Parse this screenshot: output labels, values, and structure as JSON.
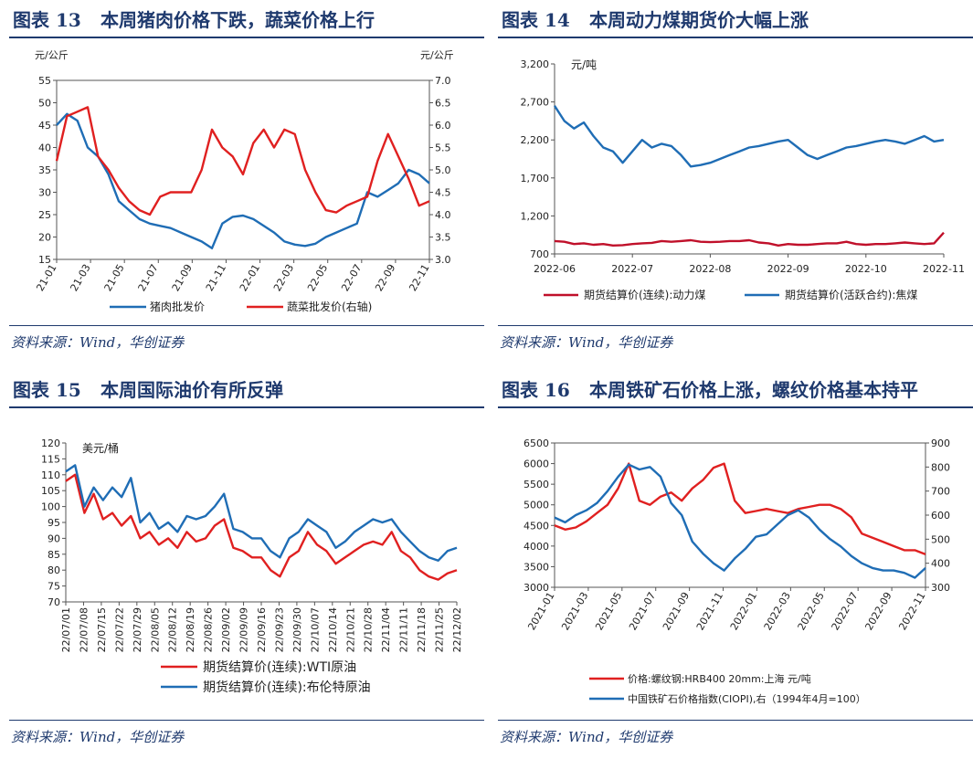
{
  "panels": {
    "p13": {
      "label": "图表 13",
      "title": "本周猪肉价格下跌，蔬菜价格上行",
      "source": "资料来源：Wind，华创证券"
    },
    "p14": {
      "label": "图表 14",
      "title": "本周动力煤期货价大幅上涨",
      "source": "资料来源：Wind，华创证券"
    },
    "p15": {
      "label": "图表 15",
      "title": "本周国际油价有所反弹",
      "source": "资料来源：Wind，华创证券"
    },
    "p16": {
      "label": "图表 16",
      "title": "本周铁矿石价格上涨，螺纹价格基本持平",
      "source": "资料来源：Wind，华创证券"
    }
  },
  "colors": {
    "red": "#e02020",
    "blue": "#1f6db5",
    "navy": "#1f3a6e"
  },
  "chart_data": [
    {
      "id": "c13",
      "type": "line",
      "yunit_left": "元/公斤",
      "yunit_right": "元/公斤",
      "ylim": [
        15,
        55
      ],
      "ylim_right": [
        3.0,
        7.0
      ],
      "yticks": [
        "15",
        "20",
        "25",
        "30",
        "35",
        "40",
        "45",
        "50",
        "55"
      ],
      "yticks_right": [
        "3.0",
        "3.5",
        "4.0",
        "4.5",
        "5.0",
        "5.5",
        "6.0",
        "6.5",
        "7.0"
      ],
      "xticks": [
        "21-01",
        "21-03",
        "21-05",
        "21-07",
        "21-09",
        "21-11",
        "22-01",
        "22-03",
        "22-05",
        "22-07",
        "22-09",
        "22-11"
      ],
      "series": [
        {
          "name": "猪肉批发价",
          "axis": "left",
          "color": "#1f6db5",
          "values": [
            45,
            47.5,
            46,
            40,
            38,
            34,
            28,
            26,
            24,
            23,
            22.5,
            22,
            21,
            20,
            19,
            17.5,
            23,
            24.5,
            24.8,
            24,
            22.5,
            21,
            19,
            18.3,
            18,
            18.5,
            20,
            21,
            22,
            23,
            30,
            29,
            30.5,
            32,
            35,
            34,
            32
          ]
        },
        {
          "name": "蔬菜批发价(右轴)",
          "axis": "right",
          "color": "#e02020",
          "values": [
            5.2,
            6.2,
            6.3,
            6.4,
            5.3,
            5.0,
            4.6,
            4.3,
            4.1,
            4.0,
            4.4,
            4.5,
            4.5,
            4.5,
            5.0,
            5.9,
            5.5,
            5.3,
            4.9,
            5.6,
            5.9,
            5.5,
            5.9,
            5.8,
            5.0,
            4.5,
            4.1,
            4.05,
            4.2,
            4.3,
            4.4,
            5.2,
            5.8,
            5.3,
            4.8,
            4.2,
            4.3
          ]
        }
      ]
    },
    {
      "id": "c14",
      "type": "line",
      "yunit": "元/吨",
      "ylim": [
        700,
        3200
      ],
      "yticks": [
        "700",
        "1,200",
        "1,700",
        "2,200",
        "2,700",
        "3,200"
      ],
      "xticks": [
        "2022-06",
        "2022-07",
        "2022-08",
        "2022-09",
        "2022-10",
        "2022-11"
      ],
      "series": [
        {
          "name": "期货结算价(连续):动力煤",
          "color": "#c0102a",
          "values": [
            870,
            860,
            830,
            840,
            820,
            830,
            810,
            815,
            830,
            840,
            845,
            870,
            860,
            870,
            880,
            860,
            855,
            860,
            870,
            870,
            880,
            850,
            840,
            810,
            830,
            820,
            820,
            830,
            840,
            840,
            860,
            830,
            820,
            830,
            830,
            840,
            850,
            840,
            830,
            840,
            980
          ]
        },
        {
          "name": "期货结算价(活跃合约):焦煤",
          "color": "#1f6db5",
          "values": [
            2650,
            2450,
            2350,
            2430,
            2250,
            2100,
            2050,
            1900,
            2050,
            2200,
            2100,
            2150,
            2120,
            2000,
            1850,
            1870,
            1900,
            1950,
            2000,
            2050,
            2100,
            2120,
            2150,
            2180,
            2200,
            2100,
            2000,
            1950,
            2000,
            2050,
            2100,
            2120,
            2150,
            2180,
            2200,
            2180,
            2150,
            2200,
            2250,
            2180,
            2200
          ]
        }
      ]
    },
    {
      "id": "c15",
      "type": "line",
      "yunit": "美元/桶",
      "ylim": [
        70,
        120
      ],
      "yticks": [
        "70",
        "75",
        "80",
        "85",
        "90",
        "95",
        "100",
        "105",
        "110",
        "115",
        "120"
      ],
      "xticks": [
        "22/07/01",
        "22/07/08",
        "22/07/15",
        "22/07/22",
        "22/07/29",
        "22/08/05",
        "22/08/12",
        "22/08/19",
        "22/08/26",
        "22/09/02",
        "22/09/09",
        "22/09/16",
        "22/09/23",
        "22/09/30",
        "22/10/07",
        "22/10/14",
        "22/10/21",
        "22/10/28",
        "22/11/04",
        "22/11/11",
        "22/11/18",
        "22/11/25",
        "22/12/02"
      ],
      "series": [
        {
          "name": "期货结算价(连续):WTI原油",
          "color": "#e02020",
          "values": [
            108,
            110,
            98,
            104,
            96,
            98,
            94,
            97,
            90,
            92,
            88,
            90,
            87,
            92,
            89,
            90,
            94,
            96,
            87,
            86,
            84,
            84,
            80,
            78,
            84,
            86,
            92,
            88,
            86,
            82,
            84,
            86,
            88,
            89,
            88,
            92,
            86,
            84,
            80,
            78,
            77,
            79,
            80
          ]
        },
        {
          "name": "期货结算价(连续):布伦特原油",
          "color": "#1f6db5",
          "values": [
            111,
            113,
            100,
            106,
            102,
            106,
            103,
            109,
            95,
            98,
            93,
            95,
            92,
            97,
            96,
            97,
            100,
            104,
            93,
            92,
            90,
            90,
            86,
            84,
            90,
            92,
            96,
            94,
            92,
            87,
            89,
            92,
            94,
            96,
            95,
            96,
            92,
            89,
            86,
            84,
            83,
            86,
            87
          ]
        }
      ]
    },
    {
      "id": "c16",
      "type": "line",
      "ylim": [
        3000,
        6500
      ],
      "ylim_right": [
        300,
        900
      ],
      "yticks": [
        "3000",
        "3500",
        "4000",
        "4500",
        "5000",
        "5500",
        "6000",
        "6500"
      ],
      "yticks_right": [
        "300",
        "400",
        "500",
        "600",
        "700",
        "800",
        "900"
      ],
      "xticks": [
        "2021-01",
        "2021-03",
        "2021-05",
        "2021-07",
        "2021-09",
        "2021-11",
        "2022-01",
        "2022-03",
        "2022-05",
        "2022-07",
        "2022-09",
        "2022-11"
      ],
      "series": [
        {
          "name": "价格:螺纹钢:HRB400 20mm:上海 元/吨",
          "axis": "left",
          "color": "#e02020",
          "values": [
            4500,
            4400,
            4450,
            4600,
            4800,
            5000,
            5400,
            6000,
            5100,
            5000,
            5200,
            5300,
            5100,
            5400,
            5600,
            5900,
            6000,
            5100,
            4800,
            4850,
            4900,
            4850,
            4800,
            4900,
            4950,
            5000,
            5000,
            4900,
            4700,
            4300,
            4200,
            4100,
            4000,
            3900,
            3900,
            3800
          ]
        },
        {
          "name": "中国铁矿石价格指数(CIOPI),右（1994年4月=100）",
          "axis": "right",
          "color": "#1f6db5",
          "values": [
            590,
            570,
            600,
            620,
            650,
            700,
            760,
            810,
            790,
            800,
            760,
            650,
            600,
            490,
            440,
            400,
            370,
            420,
            460,
            510,
            520,
            560,
            600,
            620,
            590,
            540,
            500,
            470,
            430,
            400,
            380,
            370,
            370,
            360,
            340,
            380
          ]
        }
      ]
    }
  ]
}
